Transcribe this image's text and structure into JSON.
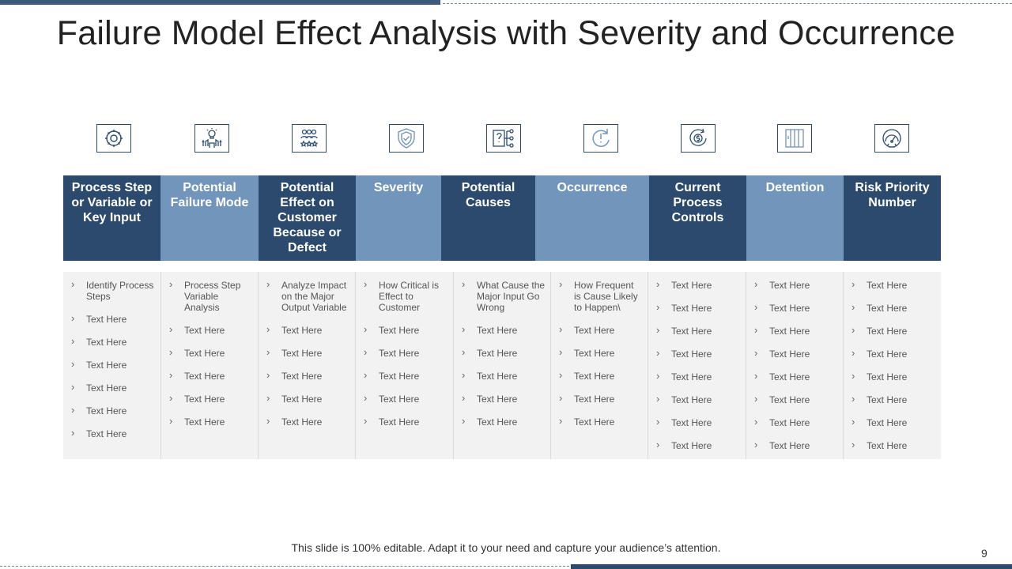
{
  "title": "Failure Model Effect Analysis with Severity and Occurrence",
  "icons": [
    "gear-cycle-icon",
    "idea-people-icon",
    "team-rating-icon",
    "shield-check-icon",
    "question-flow-icon",
    "refresh-alert-icon",
    "dollar-cycle-icon",
    "door-panel-icon",
    "gauge-icon"
  ],
  "colors": {
    "dark_header": "#2c4a6e",
    "light_header": "#7296bb",
    "body_bg": "#f2f2f2"
  },
  "columns": [
    {
      "header": "Process Step or Variable or Key Input",
      "items": [
        "Identify Process Steps",
        "Text Here",
        "Text Here",
        "Text Here",
        "Text Here",
        "Text Here",
        "Text Here"
      ]
    },
    {
      "header": "Potential Failure Mode",
      "items": [
        "Process Step Variable Analysis",
        "Text Here",
        "Text Here",
        "Text Here",
        "Text Here",
        "Text Here"
      ]
    },
    {
      "header": "Potential Effect on Customer Because or Defect",
      "items": [
        "Analyze Impact on the Major Output Variable",
        "Text Here",
        "Text Here",
        "Text Here",
        "Text Here",
        "Text Here"
      ]
    },
    {
      "header": "Severity",
      "items": [
        "How Critical is Effect to Customer",
        "Text Here",
        "Text Here",
        "Text Here",
        "Text Here",
        "Text Here"
      ]
    },
    {
      "header": "Potential Causes",
      "items": [
        "What Cause the Major Input Go Wrong",
        "Text Here",
        "Text Here",
        "Text Here",
        "Text Here",
        "Text Here"
      ]
    },
    {
      "header": "Occurrence",
      "items": [
        "How Frequent is Cause Likely to Happen\\",
        "Text Here",
        "Text Here",
        "Text Here",
        "Text Here",
        "Text Here"
      ]
    },
    {
      "header": "Current Process Controls",
      "items": [
        "Text Here",
        "Text Here",
        "Text Here",
        "Text Here",
        "Text Here",
        "Text Here",
        "Text Here",
        "Text Here"
      ]
    },
    {
      "header": "Detention",
      "items": [
        "Text Here",
        "Text Here",
        "Text Here",
        "Text Here",
        "Text Here",
        "Text Here",
        "Text Here",
        "Text Here"
      ]
    },
    {
      "header": "Risk Priority Number",
      "items": [
        "Text Here",
        "Text Here",
        "Text Here",
        "Text Here",
        "Text Here",
        "Text Here",
        "Text Here",
        "Text Here"
      ]
    }
  ],
  "footer": "This slide is 100% editable. Adapt it to your need and capture your audience’s attention.",
  "page_number": "9"
}
